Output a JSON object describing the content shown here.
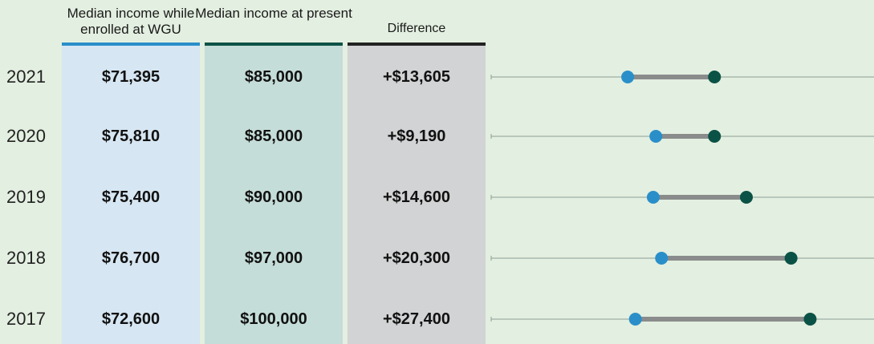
{
  "chart_data": {
    "type": "dumbbell",
    "categories": [
      "2021",
      "2020",
      "2019",
      "2018",
      "2017"
    ],
    "series": [
      {
        "name": "Median income while enrolled at WGU",
        "color": "#2a8fc9",
        "values": [
          71395,
          75810,
          75400,
          76700,
          72600
        ],
        "value_labels": [
          "$71,395",
          "$75,810",
          "$75,400",
          "$76,700",
          "$72,600"
        ]
      },
      {
        "name": "Median income at present",
        "color": "#0b5246",
        "values": [
          85000,
          85000,
          90000,
          97000,
          100000
        ],
        "value_labels": [
          "$85,000",
          "$85,000",
          "$90,000",
          "$97,000",
          "$100,000"
        ]
      },
      {
        "name": "Difference",
        "color": "#222222",
        "values": [
          13605,
          9190,
          14600,
          20300,
          27400
        ],
        "value_labels": [
          "+$13,605",
          "+$9,190",
          "+$14,600",
          "+$20,300",
          "+$27,400"
        ]
      }
    ],
    "xlim": [
      50000,
      110000
    ]
  }
}
